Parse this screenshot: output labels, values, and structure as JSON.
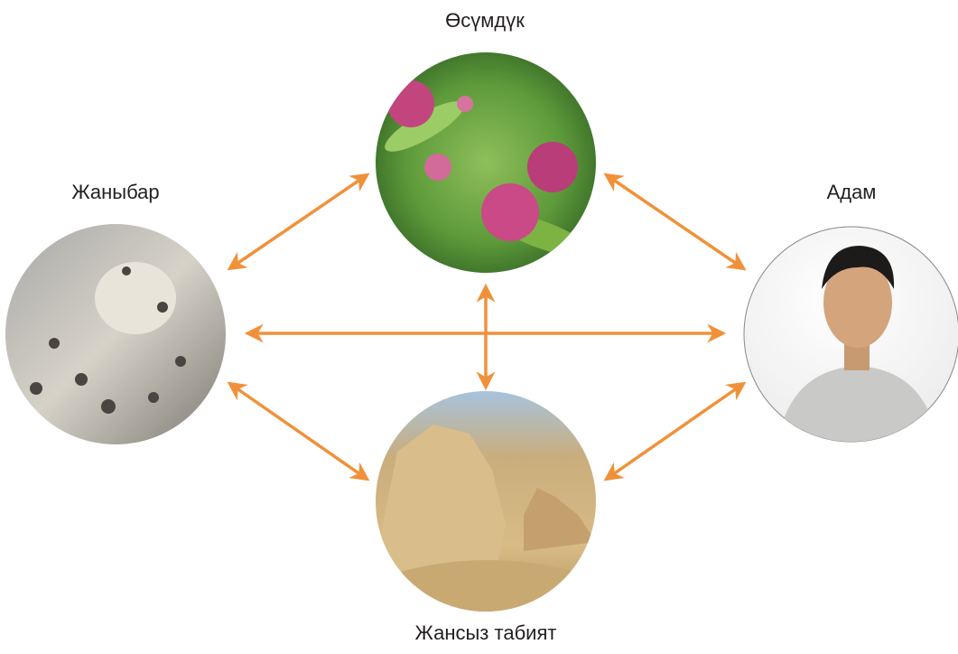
{
  "nodes": [
    {
      "label": "Өсүмдүк"
    },
    {
      "label": "Жаныбар"
    },
    {
      "label": "Адам"
    },
    {
      "label": "Жансыз табият"
    }
  ]
}
